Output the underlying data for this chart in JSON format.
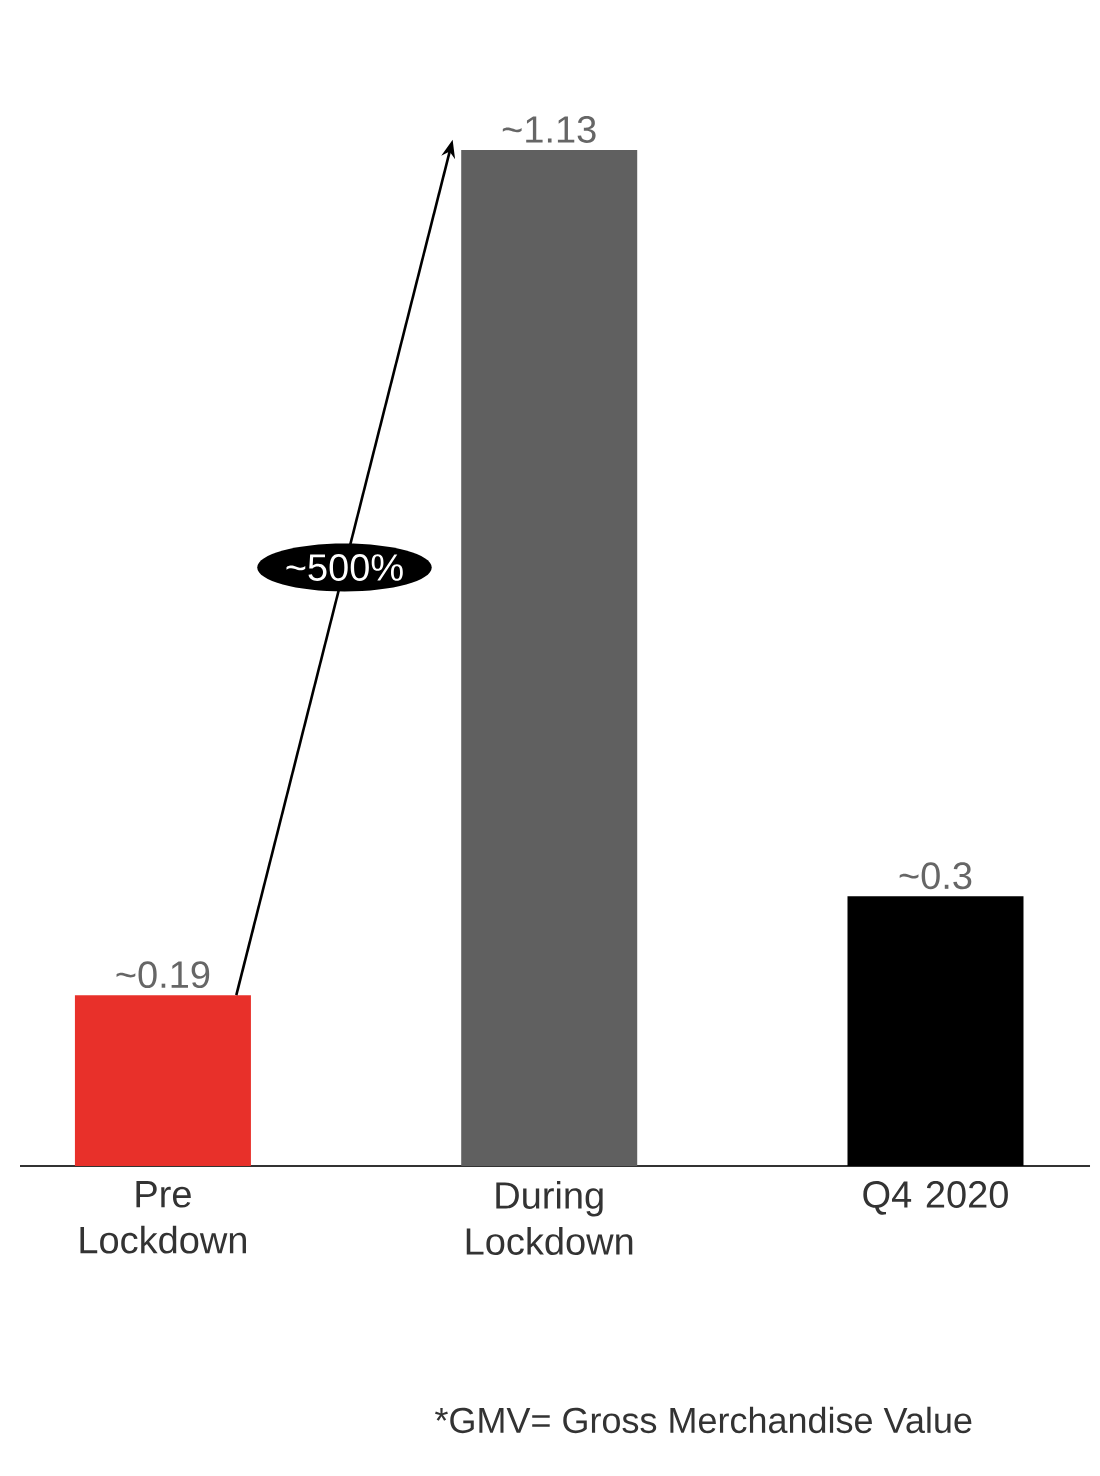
{
  "chart_data": {
    "type": "bar",
    "categories": [
      "Pre Lockdown",
      "During Lockdown",
      "Q4 2020"
    ],
    "values": [
      0.19,
      1.13,
      0.3
    ],
    "value_labels": [
      "~0.19",
      "~1.13",
      "~0.3"
    ],
    "colors": [
      "#e8302a",
      "#606060",
      "#000000"
    ],
    "annotations": [
      "~500%",
      "*GMV= Gross Merchandise Value"
    ]
  }
}
